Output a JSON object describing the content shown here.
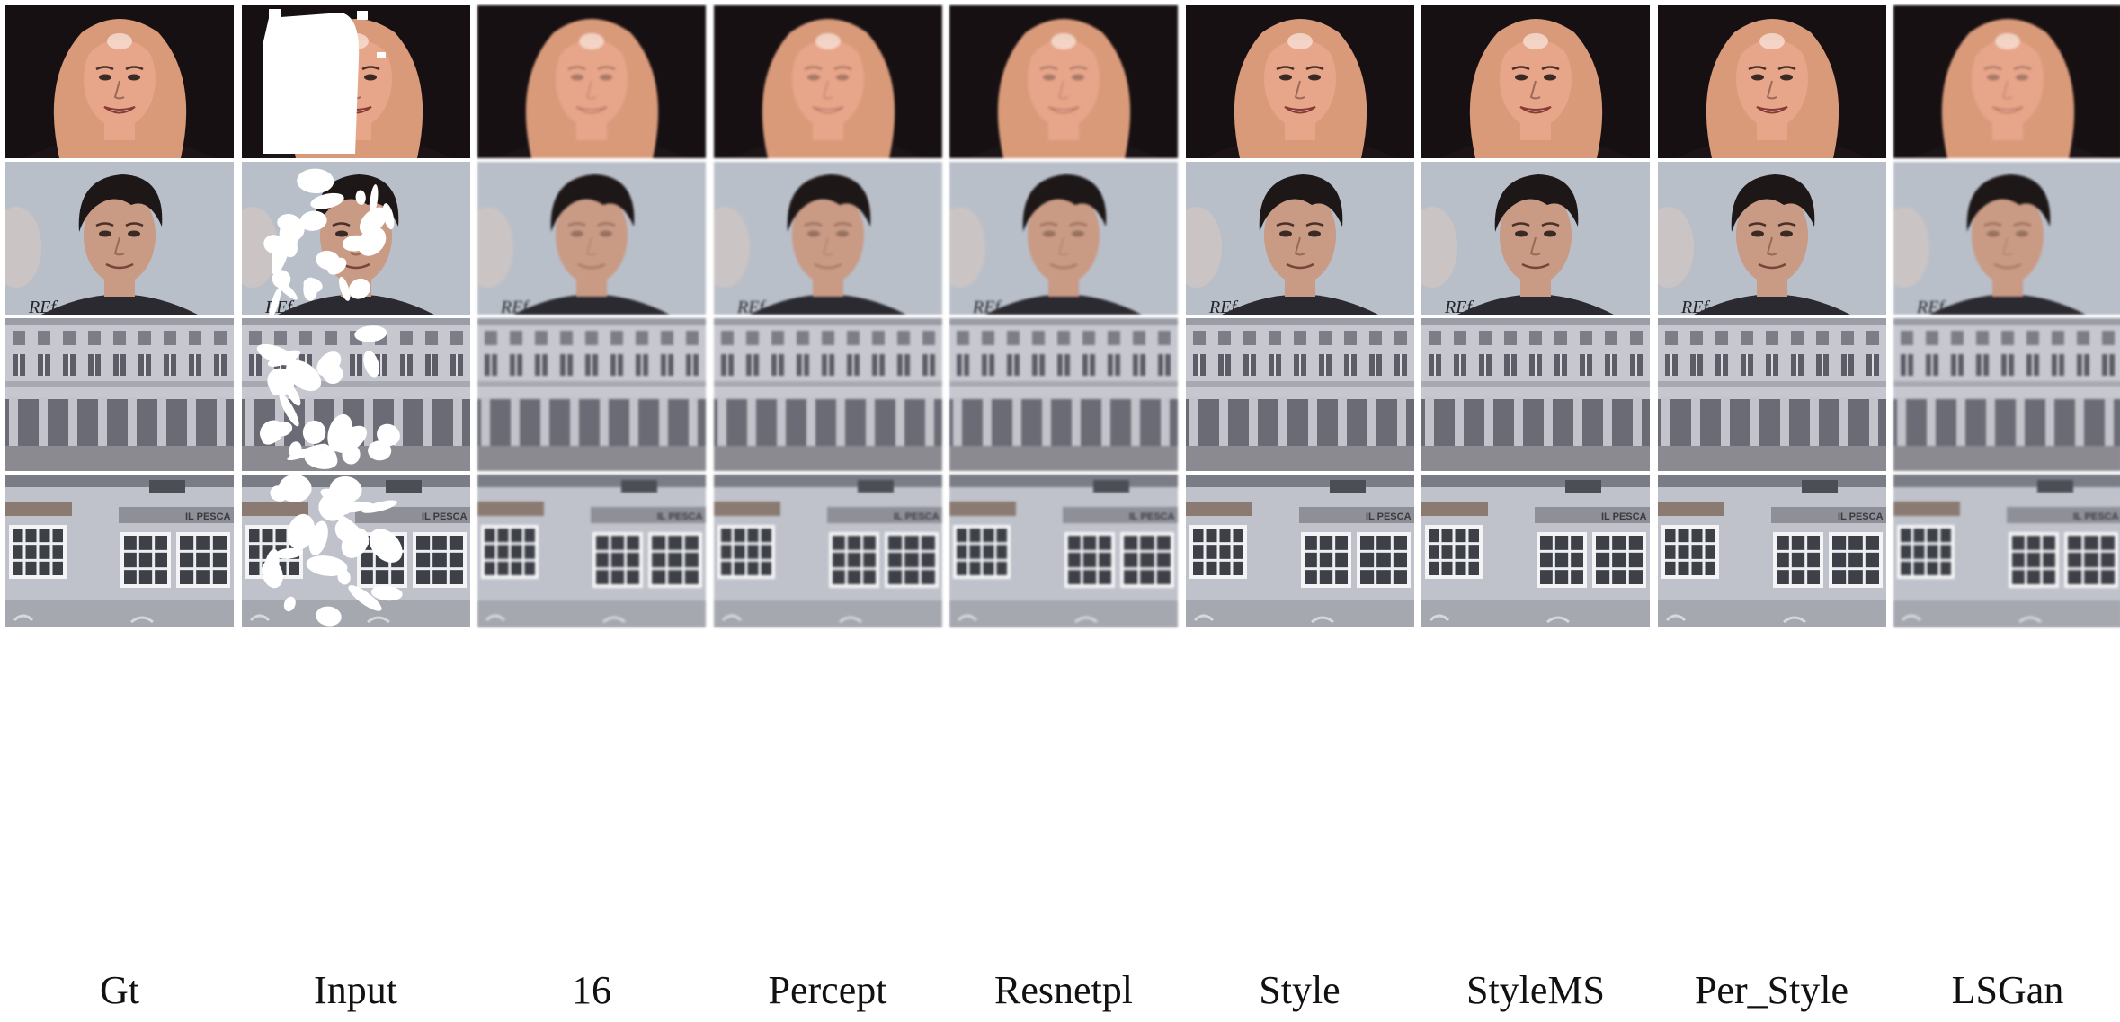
{
  "columns": [
    {
      "id": "gt",
      "label": "Gt",
      "icon": "ground-truth-image",
      "masked": false,
      "quality": "sharp"
    },
    {
      "id": "input",
      "label": "Input",
      "icon": "masked-input-image",
      "masked": true,
      "quality": "sharp"
    },
    {
      "id": "16",
      "label": "16",
      "icon": "inpainted-result-image",
      "masked": false,
      "quality": "blurry"
    },
    {
      "id": "percept",
      "label": "Percept",
      "icon": "inpainted-result-image",
      "masked": false,
      "quality": "blurry"
    },
    {
      "id": "resnetpl",
      "label": "Resnetpl",
      "icon": "inpainted-result-image",
      "masked": false,
      "quality": "blurry"
    },
    {
      "id": "style",
      "label": "Style",
      "icon": "inpainted-result-image",
      "masked": false,
      "quality": "sharp"
    },
    {
      "id": "stylems",
      "label": "StyleMS",
      "icon": "inpainted-result-image",
      "masked": false,
      "quality": "sharp"
    },
    {
      "id": "per_style",
      "label": "Per_Style",
      "icon": "inpainted-result-image",
      "masked": false,
      "quality": "sharp"
    },
    {
      "id": "lsgan",
      "label": "LSGan",
      "icon": "inpainted-result-image",
      "masked": false,
      "quality": "blurry"
    }
  ],
  "rows": [
    {
      "id": "face-woman",
      "kind": "face",
      "icon": "woman-portrait-photo",
      "bg": "#161012",
      "skin": "#e7a58a",
      "hair": "#d99a7a",
      "clothes": "#1c1416"
    },
    {
      "id": "face-man",
      "kind": "face",
      "icon": "man-portrait-photo",
      "bg": "#b9bfc9",
      "skin": "#c99a84",
      "hair": "#1d1717",
      "clothes": "#2a2a30"
    },
    {
      "id": "building-1",
      "kind": "facade",
      "icon": "building-facade-photo",
      "wall": "#c7c8cf",
      "window": "#5c5d66"
    },
    {
      "id": "building-2",
      "kind": "shopfront",
      "icon": "shopfront-facade-photo",
      "wall": "#bfc2cb",
      "window": "#3e4048",
      "sign_text": "IL PESCA"
    }
  ],
  "colors": {
    "background": "#ffffff",
    "mask": "#ffffff",
    "label_text": "#111111"
  }
}
